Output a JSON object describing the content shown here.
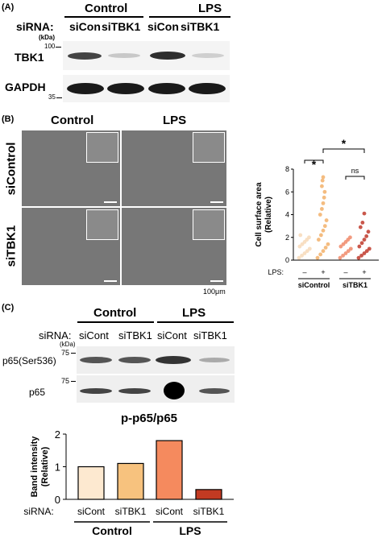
{
  "panelA": {
    "label": "(A)",
    "header_control": "Control",
    "header_lps": "LPS",
    "sirna_label": "siRNA:",
    "lanes": [
      "siCon",
      "siTBK1",
      "siCon",
      "siTBK1"
    ],
    "kda_label": "(kDa)",
    "marker_100": "100",
    "marker_35": "35",
    "row1_label": "TBK1",
    "row2_label": "GAPDH"
  },
  "panelB": {
    "label": "(B)",
    "header_control": "Control",
    "header_lps": "LPS",
    "row1_label": "siControl",
    "row2_label": "siTBK1",
    "scale_label": "100μm"
  },
  "panelC": {
    "label": "(C)",
    "header_control": "Control",
    "header_lps": "LPS",
    "sirna_label": "siRNA:",
    "lanes": [
      "siCont",
      "siTBK1",
      "siCont",
      "siTBK1"
    ],
    "kda_label": "(kDa)",
    "marker_75a": "75",
    "marker_75b": "75",
    "row1_label": "p65(Ser536)",
    "row2_label": "p65"
  },
  "chart_data": [
    {
      "type": "scatter",
      "title": "",
      "ylabel": "Cell surface area (Relative)",
      "ylim": [
        0,
        8
      ],
      "yticks": [
        0,
        2,
        4,
        6,
        8
      ],
      "lps_label": "LPS:",
      "lps_values": [
        "–",
        "+",
        "–",
        "+"
      ],
      "group_labels": [
        "siControl",
        "siTBK1"
      ],
      "colors": [
        "#f7d9b8",
        "#f2b06a",
        "#f08a6a",
        "#c0392b"
      ],
      "series": [
        {
          "values": [
            0.2,
            0.4,
            0.6,
            0.8,
            1.0,
            1.2,
            1.4,
            1.6,
            1.8,
            2.0,
            2.2
          ]
        },
        {
          "values": [
            0.2,
            0.5,
            0.8,
            1.1,
            1.4,
            1.8,
            2.2,
            2.6,
            3.0,
            3.5,
            4.0,
            4.5,
            5.0,
            5.5,
            6.0,
            6.5,
            7.0,
            7.3
          ]
        },
        {
          "values": [
            0.2,
            0.4,
            0.6,
            0.8,
            1.0,
            1.2,
            1.4,
            1.6,
            1.8,
            2.0
          ]
        },
        {
          "values": [
            0.2,
            0.4,
            0.6,
            0.8,
            1.0,
            1.2,
            1.5,
            1.8,
            2.1,
            2.5,
            2.9,
            3.3,
            4.1
          ]
        }
      ],
      "significance": [
        "*",
        "ns",
        "*"
      ]
    },
    {
      "type": "bar",
      "title": "p-p65/p65",
      "ylabel": "Band intensity (Relative)",
      "ylim": [
        0,
        2
      ],
      "yticks": [
        0,
        1,
        2
      ],
      "categories": [
        "siCont",
        "siTBK1",
        "siCont",
        "siTBK1"
      ],
      "values": [
        1.0,
        1.1,
        1.8,
        0.3
      ],
      "colors": [
        "#fde9d0",
        "#f7c27e",
        "#f58a5e",
        "#c23a22"
      ],
      "sirna_label": "siRNA:",
      "group_labels": [
        "Control",
        "LPS"
      ]
    }
  ]
}
